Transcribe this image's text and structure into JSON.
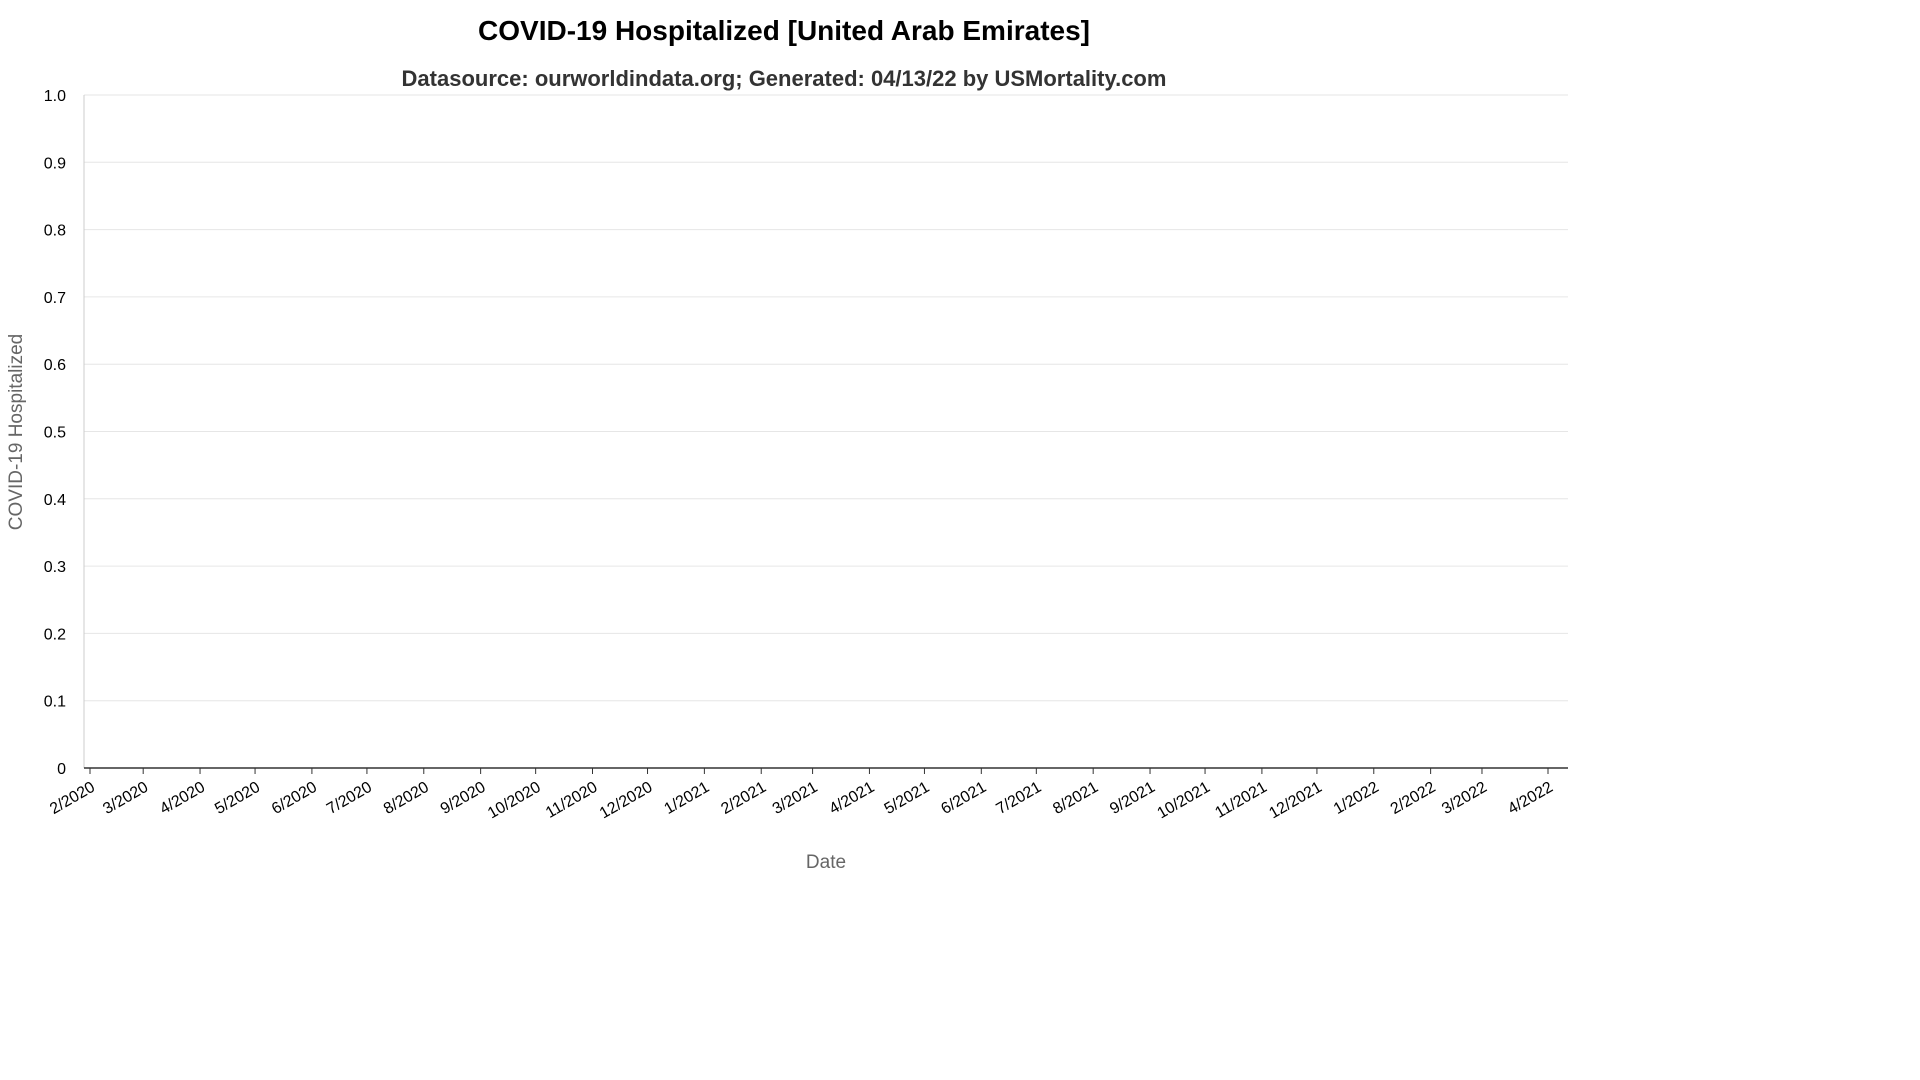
{
  "chart_data": {
    "type": "line",
    "title": "COVID-19 Hospitalized [United Arab Emirates]",
    "subtitle": "Datasource: ourworldindata.org; Generated: 04/13/22 by USMortality.com",
    "xlabel": "Date",
    "ylabel": "COVID-19 Hospitalized",
    "ylim": [
      0,
      1
    ],
    "xlim": [
      "2020-02-01",
      "2022-04-06"
    ],
    "y_ticks": [
      "0",
      "0.1",
      "0.2",
      "0.3",
      "0.4",
      "0.5",
      "0.6",
      "0.7",
      "0.8",
      "0.9",
      "1.0"
    ],
    "x_ticks": [
      "2/2020",
      "3/2020",
      "4/2020",
      "5/2020",
      "6/2020",
      "7/2020",
      "8/2020",
      "9/2020",
      "10/2020",
      "11/2020",
      "12/2020",
      "1/2021",
      "2/2021",
      "3/2021",
      "4/2021",
      "5/2021",
      "6/2021",
      "7/2021",
      "8/2021",
      "9/2021",
      "10/2021",
      "11/2021",
      "12/2021",
      "1/2022",
      "2/2022",
      "3/2022",
      "4/2022"
    ],
    "grid": true,
    "legend": "none",
    "series": []
  }
}
